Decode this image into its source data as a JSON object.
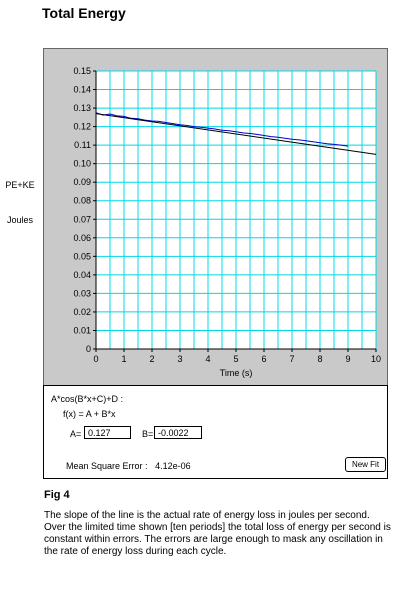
{
  "page": {
    "title": "Total Energy"
  },
  "left_labels": {
    "quantity": "PE+KE",
    "unit": "Joules"
  },
  "chart_data": {
    "type": "line",
    "title": "",
    "xlabel": "Time  (s)",
    "ylabel": "",
    "xlim": [
      0,
      10
    ],
    "ylim": [
      0,
      0.15
    ],
    "x_ticks": [
      "0",
      "1",
      "2",
      "3",
      "4",
      "5",
      "6",
      "7",
      "8",
      "9",
      "10"
    ],
    "y_ticks": [
      "0",
      "0.01",
      "0.02",
      "0.03",
      "0.04",
      "0.05",
      "0.06",
      "0.07",
      "0.08",
      "0.09",
      "0.10",
      "0.11",
      "0.12",
      "0.13",
      "0.14",
      "0.15"
    ],
    "x_minor_per_major": 2,
    "grid": true,
    "grid_color": "#00d8e8",
    "series": [
      {
        "type": "line",
        "color": "#0000cc",
        "x": [
          0.0,
          0.25,
          0.5,
          0.75,
          1.0,
          1.25,
          1.5,
          1.75,
          2.0,
          2.25,
          2.5,
          2.75,
          3.0,
          3.25,
          3.5,
          3.75,
          4.0,
          4.25,
          4.5,
          4.75,
          5.0,
          5.25,
          5.5,
          5.75,
          6.0,
          6.25,
          6.5,
          6.75,
          7.0,
          7.25,
          7.5,
          7.75,
          8.0,
          8.25,
          8.5,
          8.75,
          9.0
        ],
        "y": [
          0.1275,
          0.1262,
          0.1268,
          0.1258,
          0.1255,
          0.1245,
          0.1242,
          0.1235,
          0.123,
          0.1228,
          0.1222,
          0.1216,
          0.121,
          0.1206,
          0.12,
          0.1196,
          0.1192,
          0.1187,
          0.118,
          0.1178,
          0.1172,
          0.1166,
          0.1163,
          0.1158,
          0.1152,
          0.1146,
          0.1143,
          0.1137,
          0.1132,
          0.1128,
          0.1124,
          0.1118,
          0.1113,
          0.1108,
          0.1104,
          0.11,
          0.1095
        ]
      },
      {
        "type": "fit-line",
        "color": "#000000",
        "x": [
          0,
          10
        ],
        "y": [
          0.127,
          0.105
        ]
      }
    ]
  },
  "fit": {
    "model": "A*cos(B*x+C)+D :",
    "formula": "f(x) = A + B*x",
    "a_label": "A=",
    "a_value": "0.127",
    "b_label": "B=",
    "b_value": "-0.0022",
    "mse_label": "Mean Square Error :",
    "mse_value": "4.12e-06",
    "new_fit_label": "New Fit"
  },
  "figure": {
    "label": "Fig 4",
    "caption": "The slope of the line is the actual rate of energy loss in joules per second.  Over the limited time shown [ten periods] the total loss of energy per second is constant within errors. The errors are large enough to mask any oscillation in the rate of energy loss during each cycle."
  }
}
